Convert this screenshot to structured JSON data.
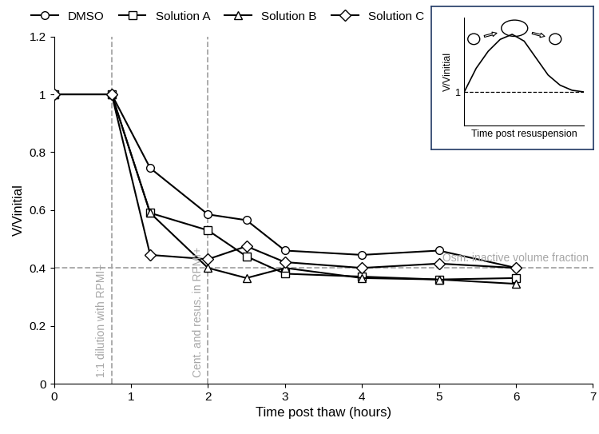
{
  "chart_data": {
    "type": "line",
    "xlabel": "Time post thaw (hours)",
    "ylabel": "V/Vinitial",
    "x": [
      0,
      0.75,
      1.25,
      2,
      2.5,
      3,
      4,
      5,
      6
    ],
    "series": [
      {
        "name": "DMSO",
        "color": "#000000",
        "marker": "circle",
        "line_style": "solid",
        "values": [
          1,
          1,
          0.745,
          0.585,
          0.565,
          0.46,
          0.445,
          0.46,
          0.4
        ]
      },
      {
        "name": "Solution A",
        "color": "#000000",
        "marker": "square",
        "line_style": "solid",
        "values": [
          1,
          1,
          0.59,
          0.53,
          0.44,
          0.38,
          0.37,
          0.36,
          0.365
        ]
      },
      {
        "name": "Solution B",
        "color": "#000000",
        "marker": "triangle",
        "line_style": "solid",
        "values": [
          1,
          1,
          0.59,
          0.4,
          0.365,
          0.4,
          0.365,
          0.36,
          0.345
        ]
      },
      {
        "name": "Solution C",
        "color": "#000000",
        "marker": "diamond",
        "line_style": "solid",
        "values": [
          1,
          1,
          0.445,
          0.43,
          0.475,
          0.42,
          0.4,
          0.415,
          0.4
        ]
      }
    ],
    "xlim": [
      0,
      7
    ],
    "ylim": [
      0,
      1.2
    ],
    "xticks": [
      0,
      1,
      2,
      3,
      4,
      5,
      6,
      7
    ],
    "yticks": [
      0,
      0.2,
      0.4,
      0.6,
      0.8,
      1,
      1.2
    ],
    "legend": "upper center",
    "reference_lines": [
      {
        "axis": "x",
        "value": 0.75,
        "label": "1:1 dilution with RPMI+",
        "color": "#a6a6a6",
        "line_style": "dashed"
      },
      {
        "axis": "x",
        "value": 2,
        "label": "Cent. and resus. in RPMI+",
        "color": "#a6a6a6",
        "line_style": "dashed"
      },
      {
        "axis": "y",
        "value": 0.4,
        "label": "Osm. inactive volume fraction",
        "color": "#a6a6a6",
        "line_style": "dashed"
      }
    ],
    "inset": {
      "type": "line",
      "xlabel": "Time post resuspension",
      "ylabel": "V/Vinitial",
      "x": [
        0,
        0.1,
        0.2,
        0.3,
        0.4,
        0.5,
        0.6,
        0.7,
        0.8,
        0.9,
        1.0
      ],
      "values": [
        1,
        1.7,
        2.2,
        2.55,
        2.7,
        2.5,
        2.0,
        1.5,
        1.2,
        1.05,
        1.0
      ],
      "color": "#000000",
      "xlim": [
        0,
        1
      ],
      "ylim": [
        0,
        3.2
      ],
      "yticks": [
        1
      ],
      "tick_labels": "y",
      "reference_lines": [
        {
          "axis": "y",
          "value": 1,
          "color": "#000000",
          "line_style": "dashed"
        }
      ]
    }
  }
}
